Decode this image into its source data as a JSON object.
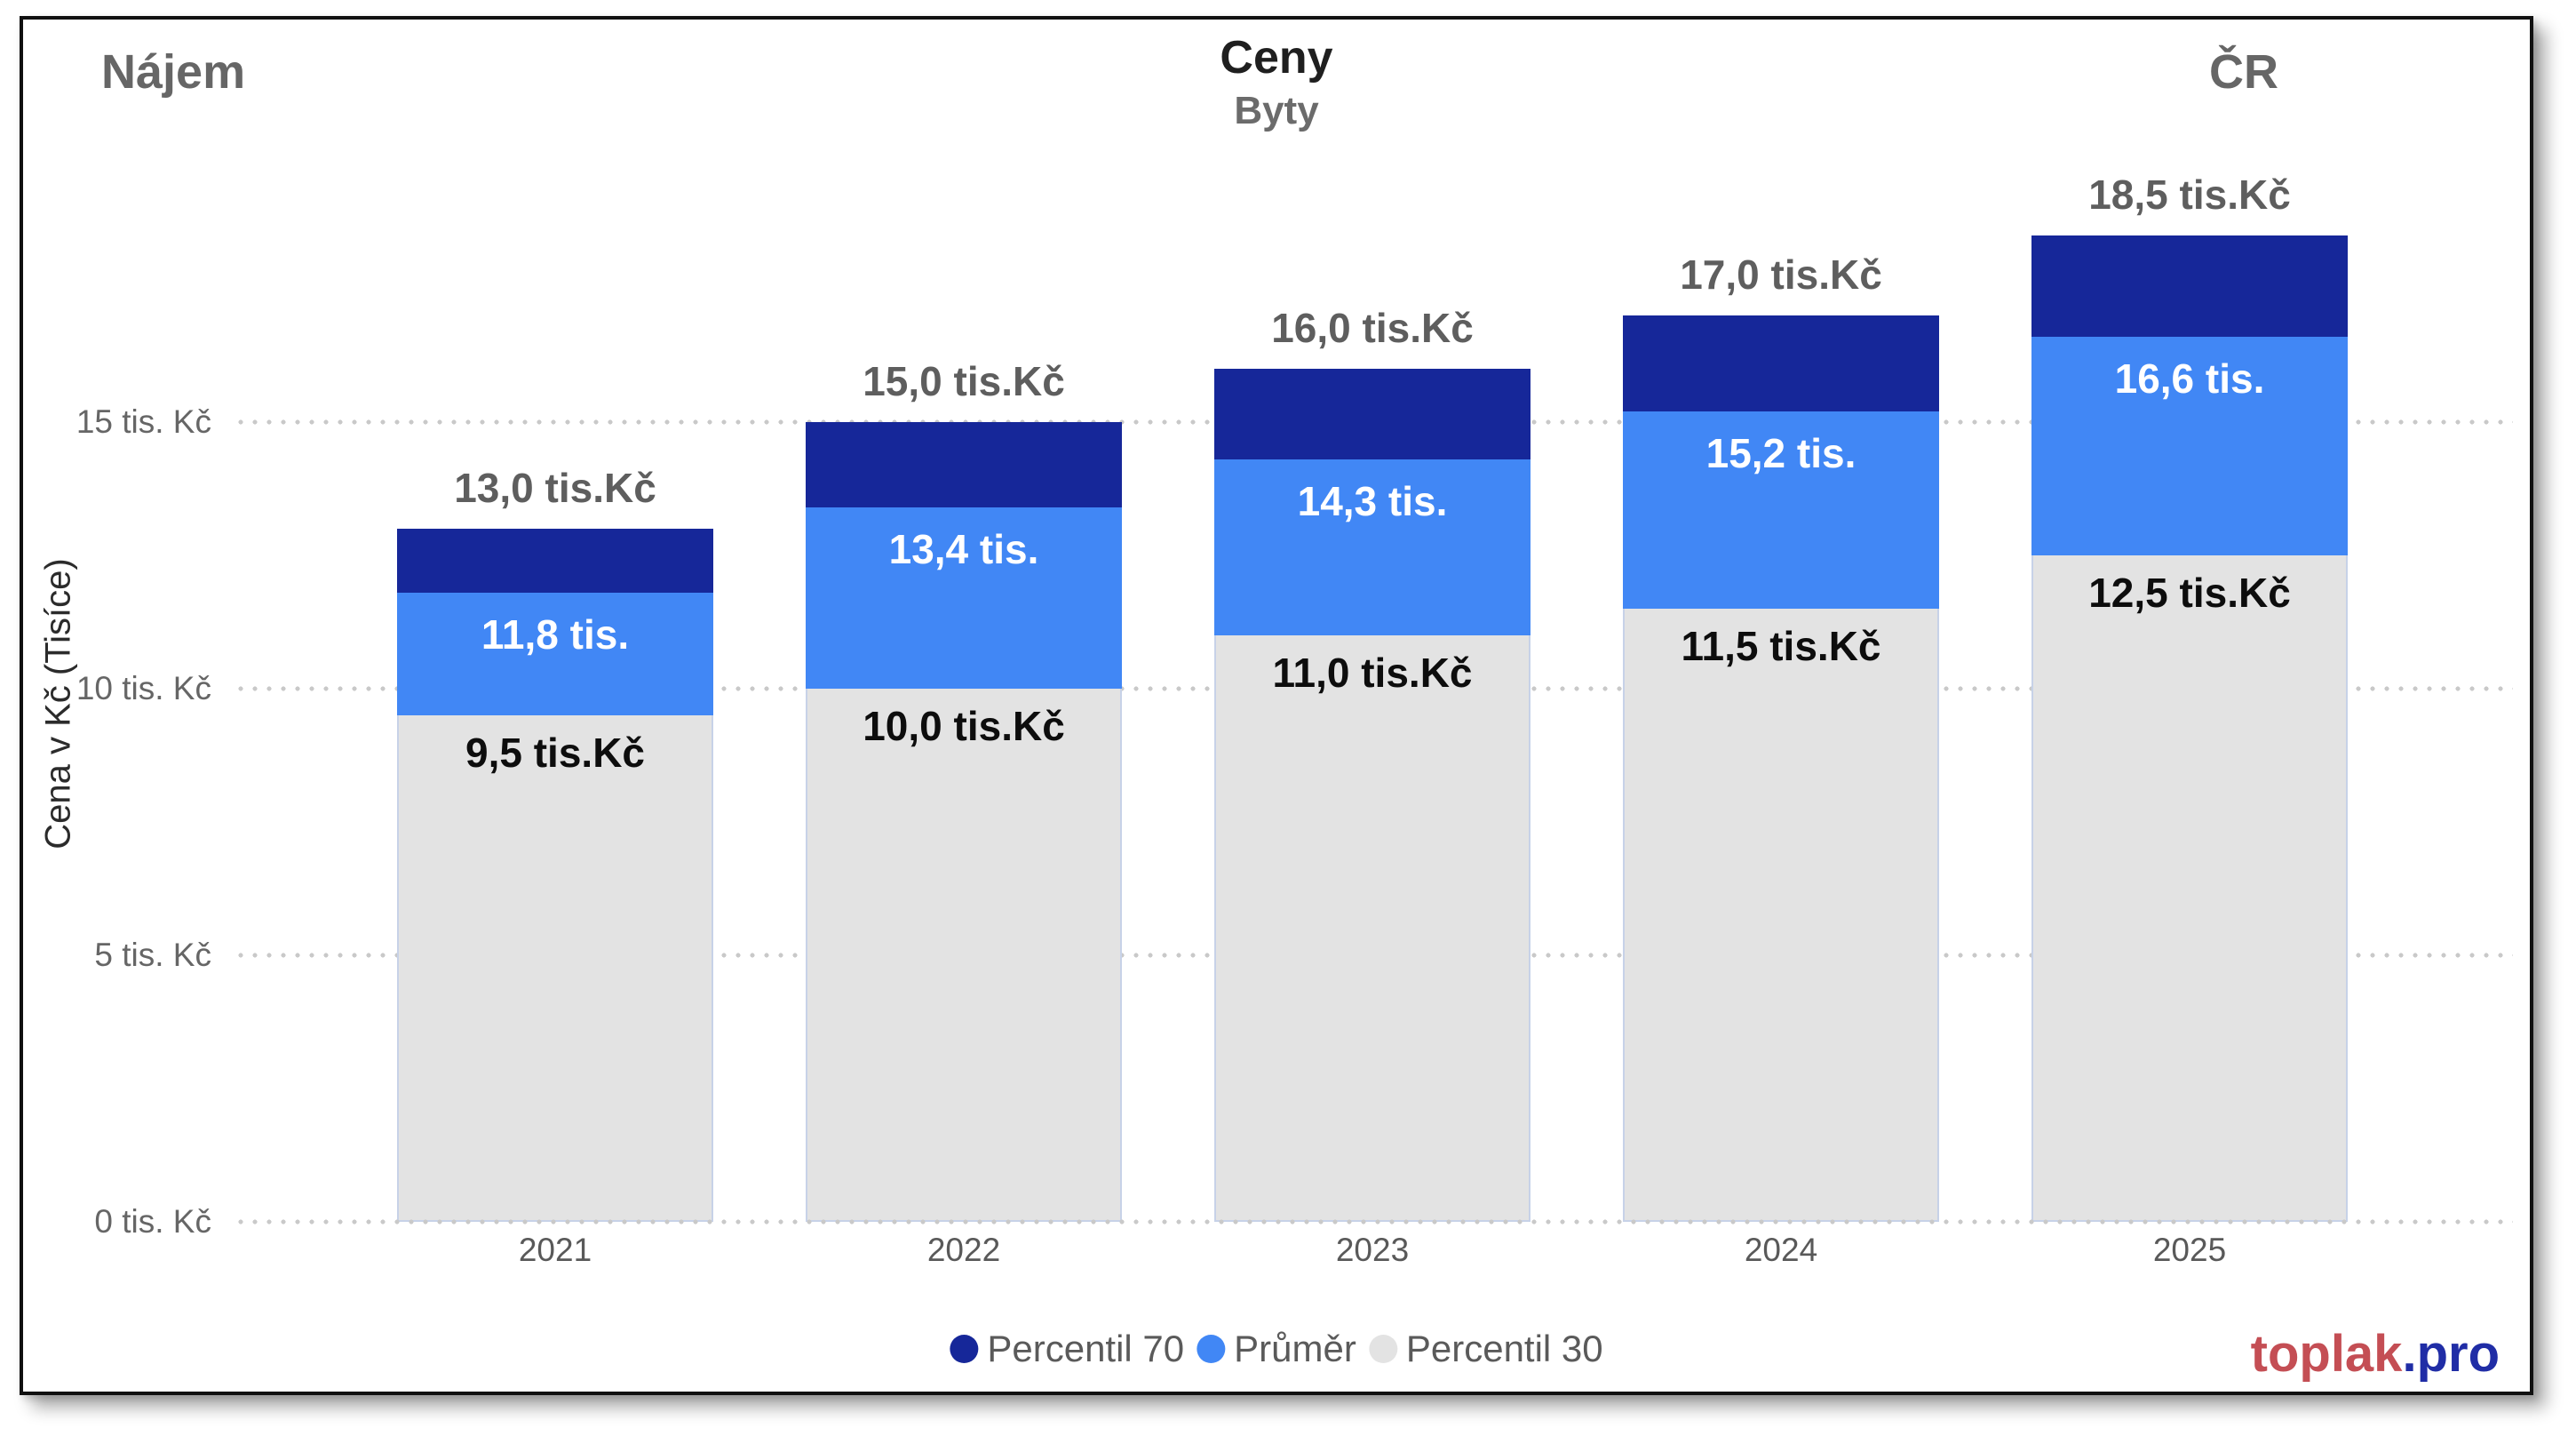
{
  "header": {
    "left_title": "Nájem",
    "center_title": "Ceny",
    "center_subtitle": "Byty",
    "right_title": "ČR"
  },
  "chart_data": {
    "type": "bar",
    "subtype": "overlapped-columns",
    "categories": [
      "2021",
      "2022",
      "2023",
      "2024",
      "2025"
    ],
    "series": [
      {
        "name": "Percentil 70",
        "color": "#162799",
        "values": [
          13.0,
          15.0,
          16.0,
          17.0,
          18.5
        ]
      },
      {
        "name": "Průměr",
        "color": "#4187f5",
        "values": [
          11.8,
          13.4,
          14.3,
          15.2,
          16.6
        ]
      },
      {
        "name": "Percentil 30",
        "color": "#e3e3e3",
        "values": [
          9.5,
          10.0,
          11.0,
          11.5,
          12.5
        ]
      }
    ],
    "data_labels": {
      "percentil70": [
        "13,0 tis.Kč",
        "15,0 tis.Kč",
        "16,0 tis.Kč",
        "17,0 tis.Kč",
        "18,5 tis.Kč"
      ],
      "prumer": [
        "11,8 tis.",
        "13,4 tis.",
        "14,3 tis.",
        "15,2 tis.",
        "16,6 tis."
      ],
      "percentil30": [
        "9,5 tis.Kč",
        "10,0 tis.Kč",
        "11,0 tis.Kč",
        "11,5 tis.Kč",
        "12,5 tis.Kč"
      ]
    },
    "ylabel": "Cena v Kč (Tisíce)",
    "yticks": [
      {
        "value": 0,
        "label": "0 tis. Kč"
      },
      {
        "value": 5,
        "label": "5 tis. Kč"
      },
      {
        "value": 10,
        "label": "10 tis. Kč"
      },
      {
        "value": 15,
        "label": "15 tis. Kč"
      }
    ],
    "ylim": [
      0,
      20
    ],
    "grid": "horizontal-dotted",
    "legend_position": "bottom-center"
  },
  "footer": {
    "logo_primary": "toplak",
    "logo_secondary": ".pro"
  }
}
